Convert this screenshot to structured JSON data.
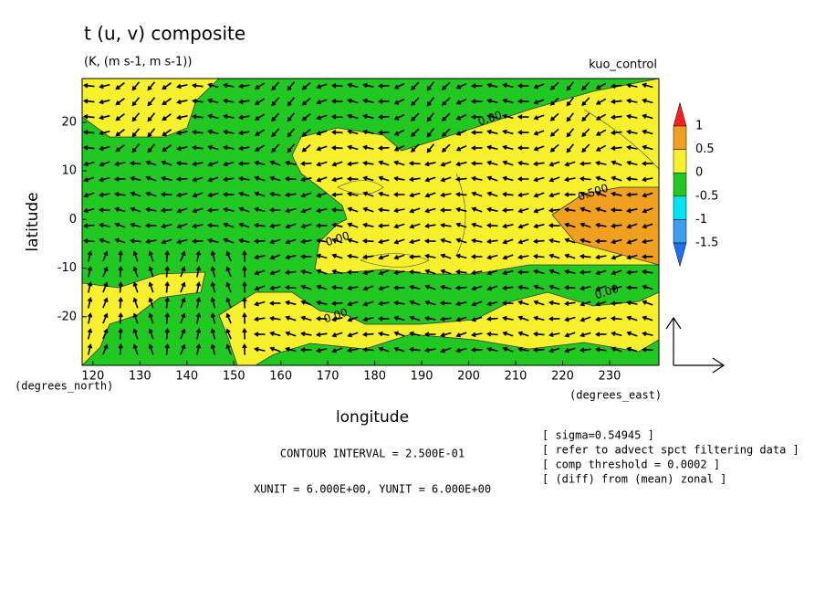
{
  "chart_data": {
    "type": "contour",
    "title": "t (u, v) composite",
    "subtitle": "(K, (m s-1, m s-1))",
    "run_label": "kuo_control",
    "x_label": "longitude",
    "y_label": "latitude",
    "x_unit_label": "(degrees_east)",
    "y_unit_label": "(degrees_north)",
    "xlim": [
      117.7,
      240.5
    ],
    "ylim": [
      -30,
      29
    ],
    "xticks": [
      120,
      130,
      140,
      150,
      160,
      170,
      180,
      190,
      200,
      210,
      220,
      230
    ],
    "yticks": [
      -20,
      -10,
      0,
      10,
      20
    ],
    "colorbar": {
      "levels": [
        -1.5,
        -1,
        -0.5,
        0,
        0.5,
        1
      ],
      "colors": [
        "#1e6ef0",
        "#3ca0f0",
        "#00e6f0",
        "#22c822",
        "#f7f02c",
        "#f0a01e",
        "#ff1e1e"
      ]
    },
    "contour_labels": [
      "0.00",
      "0.00",
      "0.00",
      "0.00",
      "0.500"
    ],
    "contour_interval": "CONTOUR INTERVAL = 2.500E-01",
    "vector_units": "XUNIT = 6.000E+00, YUNIT = 6.000E+00",
    "notes": [
      "[ sigma=0.54945 ]",
      "[ refer to advect spct filtering data ]",
      "[ comp threshold = 0.0002 ]",
      "[ (diff) from (mean) zonal ]"
    ]
  }
}
